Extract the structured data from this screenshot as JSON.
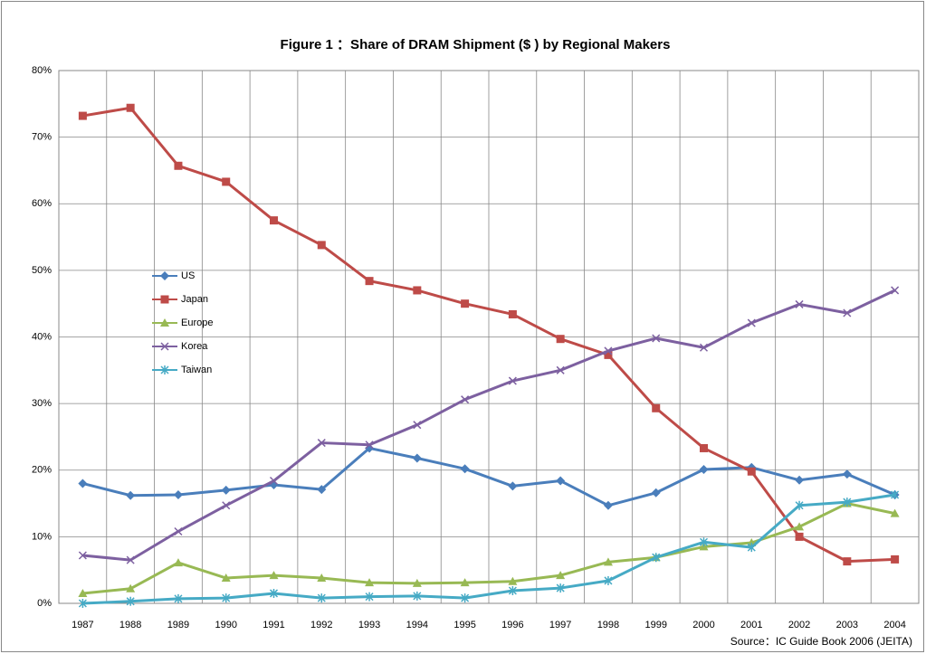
{
  "chart_data": {
    "type": "line",
    "title": "Figure 1 ：Share of DRAM Shipment ($ ) by Regional Makers",
    "source": "Source：IC Guide Book 2006 (JEITA)",
    "categories": [
      "1987",
      "1988",
      "1989",
      "1990",
      "1991",
      "1992",
      "1993",
      "1994",
      "1995",
      "1996",
      "1997",
      "1998",
      "1999",
      "2000",
      "2001",
      "2002",
      "2003",
      "2004"
    ],
    "series": [
      {
        "name": "US",
        "color": "#4a7ebb",
        "marker": "diamond",
        "values": [
          18,
          16.2,
          16.3,
          17,
          17.8,
          17.1,
          23.3,
          21.8,
          20.2,
          17.6,
          18.4,
          14.7,
          16.6,
          20.1,
          20.4,
          18.5,
          19.4,
          16.3
        ]
      },
      {
        "name": "Japan",
        "color": "#be4b48",
        "marker": "square",
        "values": [
          73.2,
          74.4,
          65.7,
          63.3,
          57.5,
          53.8,
          48.4,
          47,
          45,
          43.4,
          39.7,
          37.3,
          29.3,
          23.3,
          19.8,
          10,
          6.3,
          6.6
        ]
      },
      {
        "name": "Europe",
        "color": "#98b954",
        "marker": "triangle",
        "values": [
          1.5,
          2.2,
          6.1,
          3.8,
          4.2,
          3.8,
          3.1,
          3,
          3.1,
          3.3,
          4.2,
          6.2,
          6.9,
          8.5,
          9.1,
          11.5,
          15,
          13.5
        ]
      },
      {
        "name": "Korea",
        "color": "#7d60a0",
        "marker": "x",
        "values": [
          7.2,
          6.5,
          10.8,
          14.7,
          18.4,
          24.1,
          23.8,
          26.8,
          30.6,
          33.4,
          35,
          37.9,
          39.8,
          38.4,
          42.1,
          44.9,
          43.6,
          47
        ]
      },
      {
        "name": "Taiwan",
        "color": "#46aac5",
        "marker": "star",
        "values": [
          0,
          0.3,
          0.7,
          0.8,
          1.5,
          0.8,
          1,
          1.1,
          0.8,
          1.9,
          2.3,
          3.4,
          6.9,
          9.2,
          8.4,
          14.7,
          15.2,
          16.3
        ]
      }
    ],
    "ylim": [
      0,
      80
    ],
    "yticks": [
      {
        "value": 0,
        "label": "0%"
      },
      {
        "value": 10,
        "label": "10%"
      },
      {
        "value": 20,
        "label": "20%"
      },
      {
        "value": 30,
        "label": "30%"
      },
      {
        "value": 40,
        "label": "40%"
      },
      {
        "value": 50,
        "label": "50%"
      },
      {
        "value": 60,
        "label": "60%"
      },
      {
        "value": 70,
        "label": "70%"
      },
      {
        "value": 80,
        "label": "80%"
      }
    ],
    "grid": true,
    "legend": "left"
  }
}
